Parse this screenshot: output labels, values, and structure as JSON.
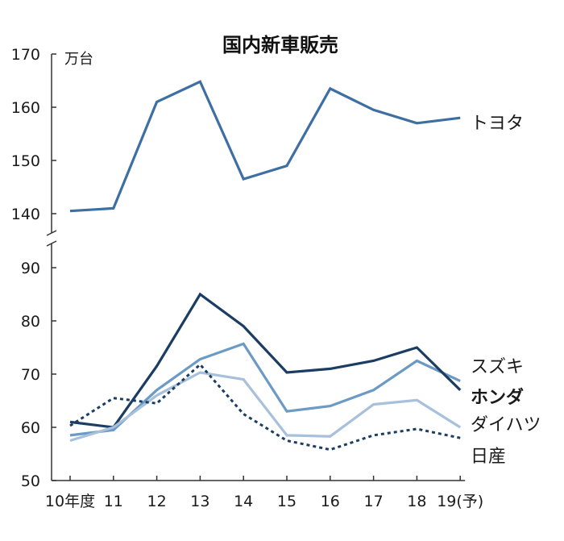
{
  "chart_data": {
    "type": "line",
    "title": "国内新車販売",
    "unit": "万台",
    "x": [
      "10年度",
      "11",
      "12",
      "13",
      "14",
      "15",
      "16",
      "17",
      "18",
      "19(予)"
    ],
    "y_ticks_upper": [
      "140",
      "150",
      "160",
      "170"
    ],
    "y_ticks_lower": [
      "50",
      "60",
      "70",
      "80",
      "90"
    ],
    "ylim_upper": [
      140,
      170
    ],
    "ylim_lower": [
      50,
      90
    ],
    "axis_break": true,
    "grid": false,
    "series": [
      {
        "name": "トヨタ",
        "color": "#3e6fa3",
        "style": "solid",
        "bold_label": false,
        "panel": "upper",
        "values": [
          140.5,
          141,
          161,
          164.8,
          146.5,
          149,
          163.5,
          159.5,
          157,
          158
        ]
      },
      {
        "name": "スズキ",
        "color": "#6b9ac4",
        "style": "solid",
        "bold_label": false,
        "panel": "lower",
        "values": [
          58.5,
          59.5,
          67,
          72.8,
          75.7,
          63,
          64,
          67,
          72.5,
          68.7
        ]
      },
      {
        "name": "ホンダ",
        "color": "#1c3d63",
        "style": "solid",
        "bold_label": true,
        "panel": "lower",
        "values": [
          61,
          60,
          71.5,
          85,
          79,
          70.3,
          71,
          72.5,
          75,
          67
        ]
      },
      {
        "name": "ダイハツ",
        "color": "#a7c0db",
        "style": "solid",
        "bold_label": false,
        "panel": "lower",
        "values": [
          57.5,
          60,
          66,
          70.3,
          69,
          58.5,
          58.3,
          64.3,
          65.1,
          60
        ]
      },
      {
        "name": "日産",
        "color": "#1c3d63",
        "style": "dotted",
        "bold_label": false,
        "panel": "lower",
        "values": [
          60.3,
          65.5,
          64.5,
          71.8,
          62.5,
          57.5,
          55.8,
          58.5,
          59.7,
          58
        ]
      }
    ]
  }
}
